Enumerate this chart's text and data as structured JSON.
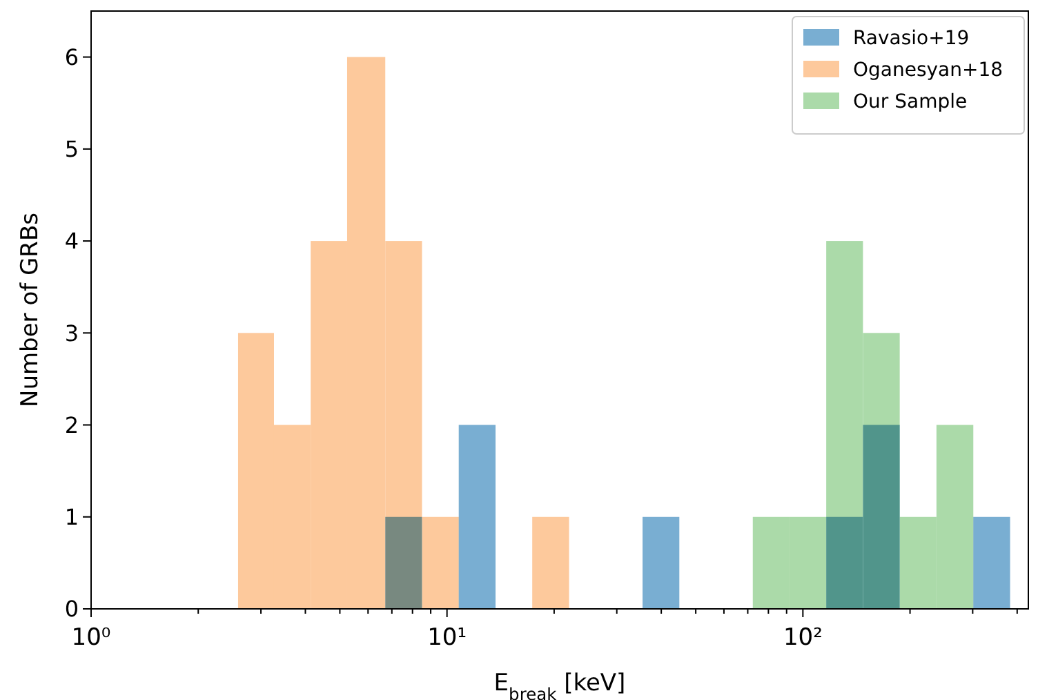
{
  "chart_data": {
    "type": "histogram",
    "xlabel": "E$_{break}$ [keV]",
    "ylabel": "Number of GRBs",
    "log": "x",
    "legend": "top right",
    "xlim": [
      1,
      430
    ],
    "xticks": [
      {
        "value": 1,
        "label": "10⁰"
      },
      {
        "value": 2,
        "label": null
      },
      {
        "value": 3,
        "label": null
      },
      {
        "value": 4,
        "label": null
      },
      {
        "value": 5,
        "label": null
      },
      {
        "value": 6,
        "label": null
      },
      {
        "value": 7,
        "label": null
      },
      {
        "value": 8,
        "label": null
      },
      {
        "value": 9,
        "label": null
      },
      {
        "value": 10,
        "label": "10¹"
      },
      {
        "value": 20,
        "label": null
      },
      {
        "value": 30,
        "label": null
      },
      {
        "value": 40,
        "label": null
      },
      {
        "value": 50,
        "label": null
      },
      {
        "value": 60,
        "label": null
      },
      {
        "value": 70,
        "label": null
      },
      {
        "value": 80,
        "label": null
      },
      {
        "value": 90,
        "label": null
      },
      {
        "value": 100,
        "label": "10²"
      },
      {
        "value": 200,
        "label": null
      },
      {
        "value": 300,
        "label": null
      },
      {
        "value": 400,
        "label": null
      }
    ],
    "ylim": [
      0,
      6.5
    ],
    "yticks": [
      0,
      1,
      2,
      3,
      4,
      5,
      6
    ],
    "bins": [
      2.588,
      3.265,
      4.14,
      5.241,
      6.708,
      8.507,
      10.79,
      13.69,
      17.36,
      22.03,
      35.44,
      44.96,
      72.32,
      91.7,
      116.3,
      147.5,
      187.1,
      237.3,
      301.2,
      382.1
    ],
    "series": [
      {
        "name": "Ravasio+19",
        "color": "#79aed2",
        "values": [
          0,
          0,
          0,
          0,
          1,
          0,
          2,
          0,
          0,
          0,
          1,
          0,
          0,
          0,
          1,
          2,
          0,
          0,
          1
        ]
      },
      {
        "name": "Oganesyan+18",
        "color": "#fdc99c",
        "values": [
          3,
          2,
          4,
          6,
          4,
          1,
          0,
          0,
          1,
          0,
          0,
          0,
          0,
          0,
          0,
          0,
          0,
          0,
          0
        ]
      },
      {
        "name": "Our Sample",
        "color": "#abdaa9",
        "values": [
          0,
          0,
          0,
          0,
          0,
          0,
          0,
          0,
          0,
          0,
          0,
          0,
          1,
          1,
          4,
          3,
          1,
          2,
          0
        ]
      }
    ]
  }
}
